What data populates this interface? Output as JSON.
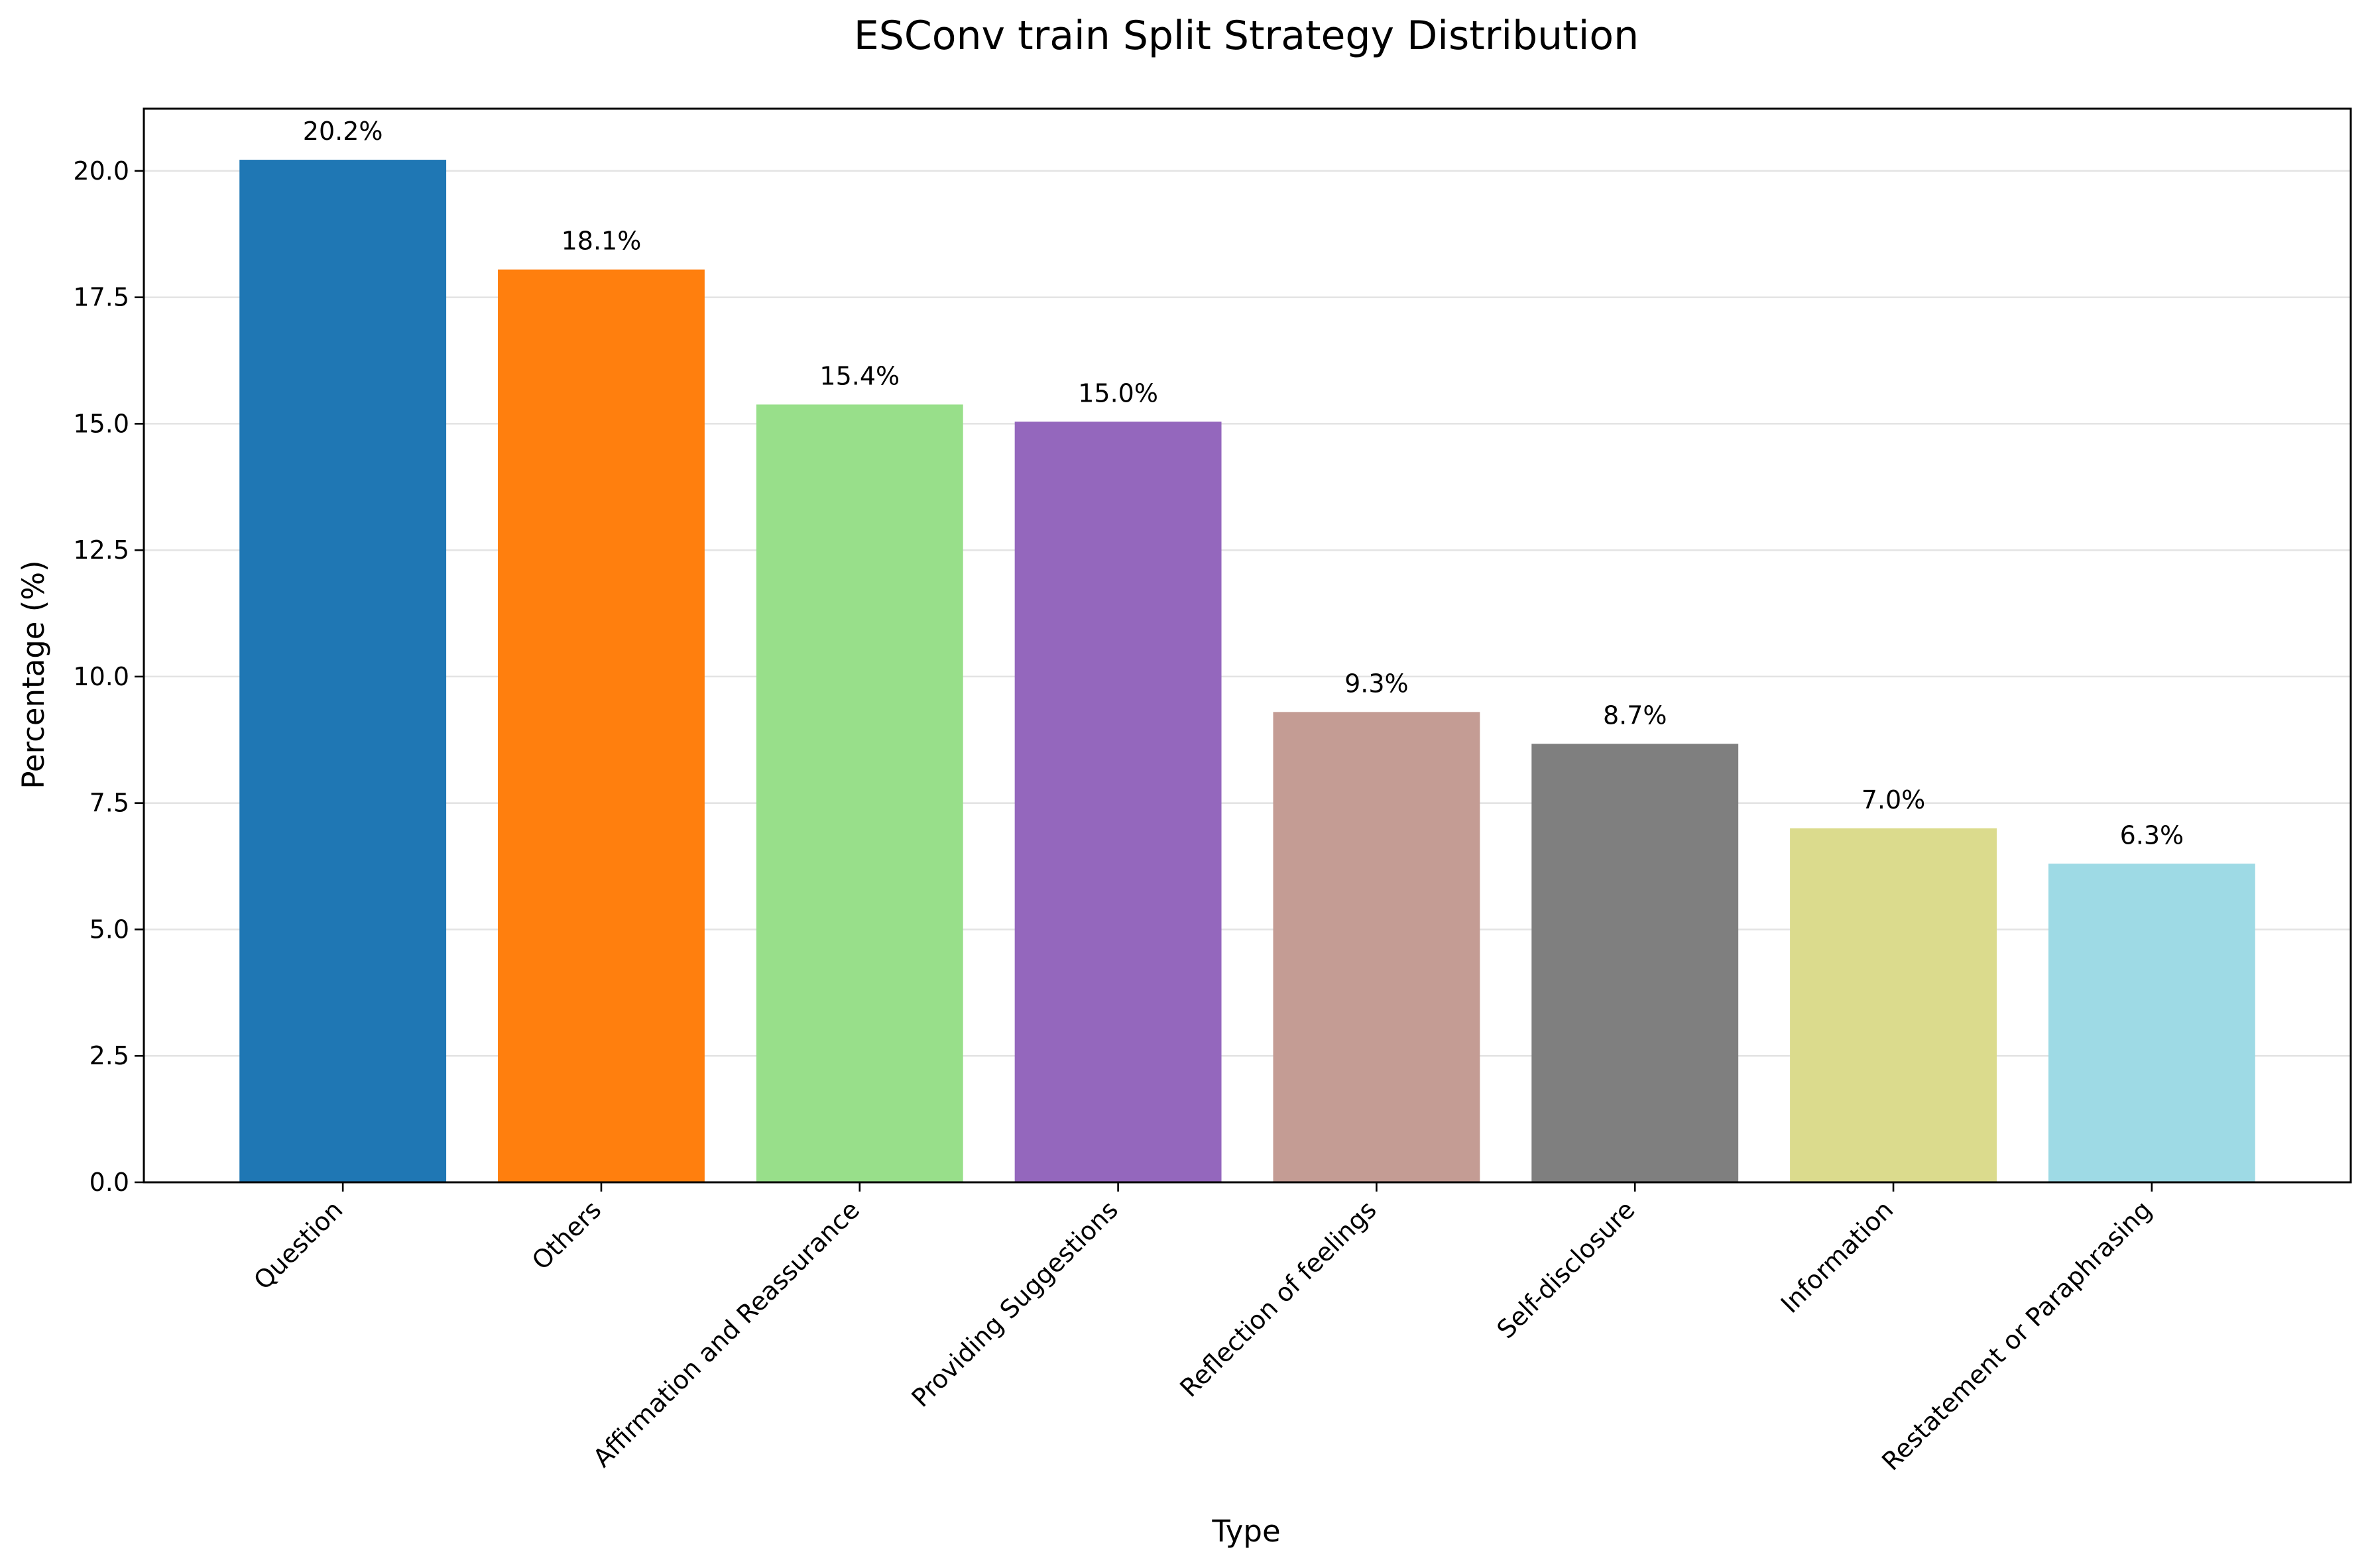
{
  "chart_data": {
    "type": "bar",
    "title": "ESConv train Split Strategy Distribution",
    "xlabel": "Type",
    "ylabel": "Percentage (%)",
    "categories": [
      "Question",
      "Others",
      "Affirmation and Reassurance",
      "Providing Suggestions",
      "Reflection of feelings",
      "Self-disclosure",
      "Information",
      "Restatement or Paraphrasing"
    ],
    "values": [
      20.22,
      18.05,
      15.38,
      15.04,
      9.3,
      8.67,
      7.0,
      6.3
    ],
    "value_labels": [
      "20.2%",
      "18.1%",
      "15.4%",
      "15.0%",
      "9.3%",
      "8.7%",
      "7.0%",
      "6.3%"
    ],
    "colors": [
      "#1f77b4",
      "#ff7f0e",
      "#98df8a",
      "#9467bd",
      "#c49c94",
      "#7f7f7f",
      "#dbdb8d",
      "#9edae5"
    ],
    "ylim": [
      0,
      21.23
    ],
    "yticks": [
      0,
      2.5,
      5,
      7.5,
      10,
      12.5,
      15,
      17.5,
      20
    ],
    "ytick_labels": [
      "0.0",
      "2.5",
      "5.0",
      "7.5",
      "10.0",
      "12.5",
      "15.0",
      "17.5",
      "20.0"
    ],
    "grid": "y",
    "legend": "none"
  }
}
